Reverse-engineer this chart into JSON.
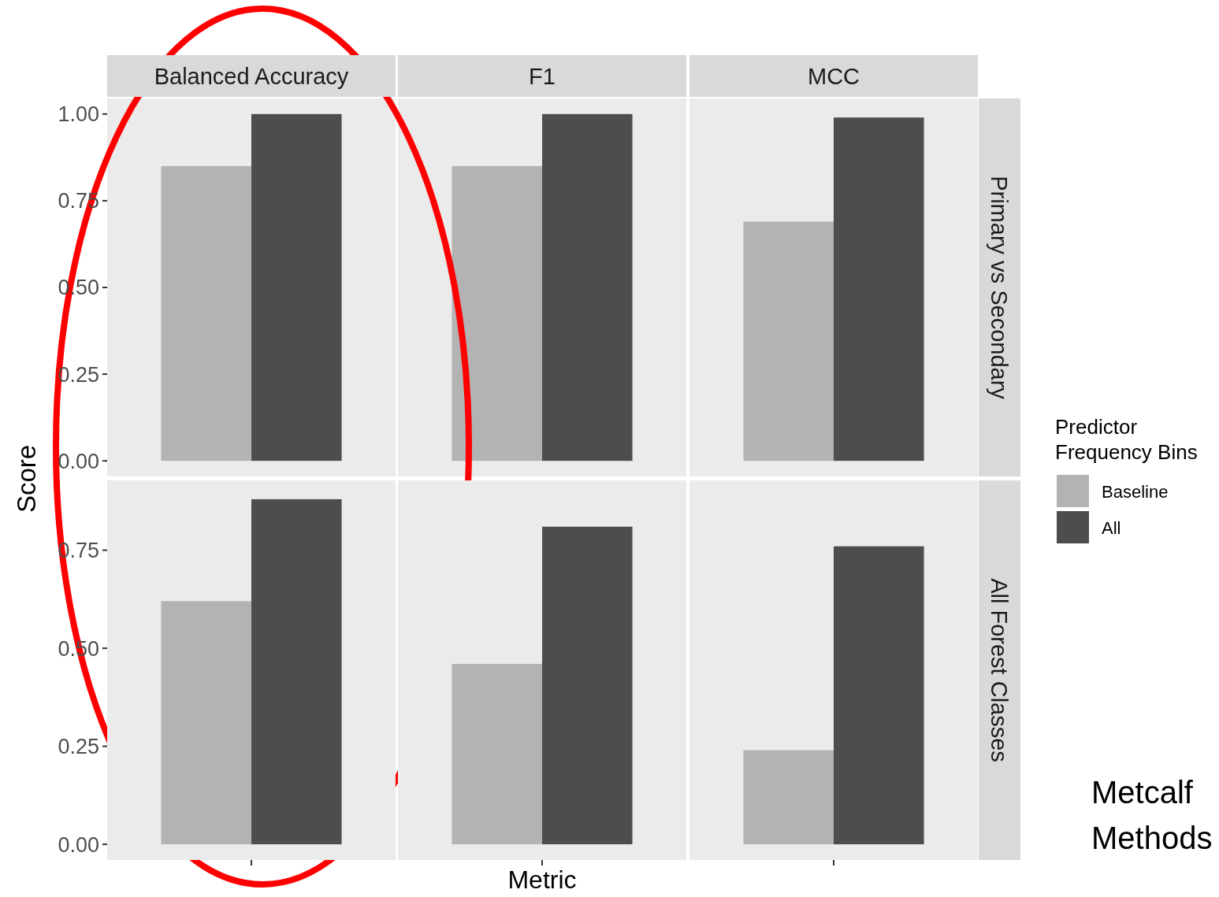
{
  "chart_data": [
    {
      "type": "bar",
      "ylabel": "Score",
      "y2label": "Primary vs Secondary",
      "categories": [
        "Balanced Accuracy",
        "F1",
        "MCC"
      ],
      "series": [
        {
          "color": "#b3b3b3",
          "values": [
            0.85,
            0.85,
            0.69
          ]
        },
        {
          "color": "#4d4d4d",
          "values": [
            1.0,
            1.0,
            0.99
          ]
        }
      ],
      "ylim": [
        -0.045,
        1.045
      ],
      "yticks": [
        {
          "value": 0,
          "label": "0.00"
        },
        {
          "value": 0.25,
          "label": "0.25"
        },
        {
          "value": 0.5,
          "label": "0.50"
        },
        {
          "value": 0.75,
          "label": "0.75"
        },
        {
          "value": 1,
          "label": "1.00"
        }
      ]
    },
    {
      "type": "bar",
      "xlabel": "Metric",
      "y2label": "All Forest Classes",
      "legend": "right",
      "legend_title": "Predictor\nFrequency Bins",
      "annotations": [
        "Metcalf",
        "Methods"
      ],
      "categories": [
        null,
        null,
        null
      ],
      "series": [
        {
          "name": "Baseline",
          "color": "#b3b3b3",
          "values": [
            0.62,
            0.46,
            0.24
          ]
        },
        {
          "name": "All",
          "color": "#4d4d4d",
          "values": [
            0.88,
            0.81,
            0.76
          ]
        }
      ],
      "ylim": [
        -0.04,
        0.928
      ],
      "yticks": [
        {
          "value": 0,
          "label": "0.00"
        },
        {
          "value": 0.25,
          "label": "0.25"
        },
        {
          "value": 0.5,
          "label": "0.50"
        },
        {
          "value": 0.75,
          "label": "0.75"
        }
      ]
    }
  ]
}
